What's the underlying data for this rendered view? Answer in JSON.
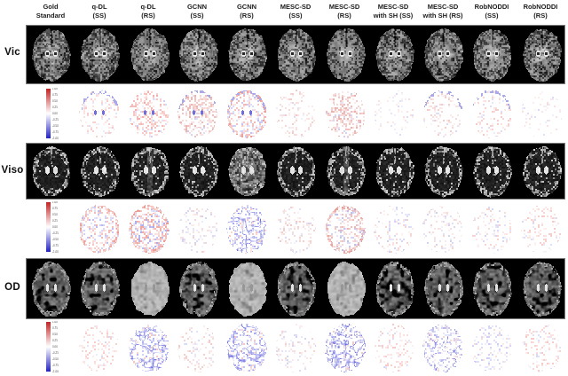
{
  "figure": {
    "background": "#ffffff",
    "strip_background": "#000000"
  },
  "columns": [
    {
      "id": "gold-standard",
      "line1": "Gold",
      "line2": "Standard"
    },
    {
      "id": "qdl-ss",
      "line1": "q-DL",
      "line2": "(SS)"
    },
    {
      "id": "qdl-rs",
      "line1": "q-DL",
      "line2": "(RS)"
    },
    {
      "id": "gcnn-ss",
      "line1": "GCNN",
      "line2": "(SS)"
    },
    {
      "id": "gcnn-rs",
      "line1": "GCNN",
      "line2": "(RS)"
    },
    {
      "id": "mescsd-ss",
      "line1": "MESC-SD",
      "line2": "(SS)"
    },
    {
      "id": "mescsd-rs",
      "line1": "MESC-SD",
      "line2": "(RS)"
    },
    {
      "id": "mescsd-sh-ss",
      "line1": "MESC-SD",
      "line2": "with SH (SS)"
    },
    {
      "id": "mescsd-sh-rs",
      "line1": "MESC-SD",
      "line2": "with SH (RS)"
    },
    {
      "id": "robnoddi-ss",
      "line1": "RobNODDI",
      "line2": "(SS)"
    },
    {
      "id": "robnoddi-rs",
      "line1": "RobNODDI",
      "line2": "(RS)"
    }
  ],
  "rows": [
    {
      "label": "Vic",
      "brains": [
        "vic",
        "vic",
        "vic-smooth",
        "vic",
        "vic",
        "vic",
        "vic-smooth",
        "vic",
        "vic",
        "vic",
        "vic"
      ],
      "diffs": [
        {
          "method": "q-DL (SS)",
          "style": "red-faint",
          "vent": true,
          "rim": true
        },
        {
          "method": "q-DL (RS)",
          "style": "red-mod",
          "vent": true,
          "rim": false
        },
        {
          "method": "GCNN (SS)",
          "style": "red-mod",
          "vent": true,
          "rim": true
        },
        {
          "method": "GCNN (RS)",
          "style": "mixed-mod",
          "vent": true,
          "rim": true
        },
        {
          "method": "MESC-SD (SS)",
          "style": "red-faint",
          "vent": false,
          "rim": false
        },
        {
          "method": "MESC-SD (RS)",
          "style": "red-mod",
          "vent": false,
          "rim": false
        },
        {
          "method": "MESC-SD with SH (SS)",
          "style": "faint",
          "vent": false,
          "rim": false
        },
        {
          "method": "MESC-SD with SH (RS)",
          "style": "red-faint",
          "vent": false,
          "rim": true
        },
        {
          "method": "RobNODDI (SS)",
          "style": "red-faint",
          "vent": false,
          "rim": true
        },
        {
          "method": "RobNODDI (RS)",
          "style": "faint",
          "vent": false,
          "rim": false
        }
      ]
    },
    {
      "label": "Viso",
      "brains": [
        "viso",
        "viso",
        "viso-mid",
        "viso",
        "viso-bright",
        "viso",
        "viso-mid",
        "viso",
        "viso",
        "viso",
        "viso"
      ],
      "diffs": [
        {
          "method": "q-DL (SS)",
          "style": "mixed-mod",
          "vent": false,
          "rim": false
        },
        {
          "method": "q-DL (RS)",
          "style": "mixed-strong",
          "vent": false,
          "rim": false
        },
        {
          "method": "GCNN (SS)",
          "style": "mixed-faint",
          "vent": false,
          "rim": false
        },
        {
          "method": "GCNN (RS)",
          "style": "blue-web",
          "vent": false,
          "rim": false
        },
        {
          "method": "MESC-SD (SS)",
          "style": "red-faint",
          "vent": false,
          "rim": false
        },
        {
          "method": "MESC-SD (RS)",
          "style": "mixed-mod",
          "vent": false,
          "rim": false
        },
        {
          "method": "MESC-SD with SH (SS)",
          "style": "mixed-faint",
          "vent": false,
          "rim": false
        },
        {
          "method": "MESC-SD with SH (RS)",
          "style": "mixed-faint",
          "vent": false,
          "rim": false
        },
        {
          "method": "RobNODDI (SS)",
          "style": "mixed-faint",
          "vent": false,
          "rim": false
        },
        {
          "method": "RobNODDI (RS)",
          "style": "red-faint",
          "vent": false,
          "rim": false
        }
      ]
    },
    {
      "label": "OD",
      "brains": [
        "od",
        "od",
        "od-light",
        "od",
        "od-light",
        "od",
        "od-light",
        "od",
        "od",
        "od",
        "od"
      ],
      "diffs": [
        {
          "method": "q-DL (SS)",
          "style": "red-faint",
          "vent": false,
          "rim": false
        },
        {
          "method": "q-DL (RS)",
          "style": "blue-web",
          "vent": false,
          "rim": false
        },
        {
          "method": "GCNN (SS)",
          "style": "red-faint",
          "vent": false,
          "rim": false
        },
        {
          "method": "GCNN (RS)",
          "style": "blue-web",
          "vent": false,
          "rim": false
        },
        {
          "method": "MESC-SD (SS)",
          "style": "mixed-faint",
          "vent": false,
          "rim": false
        },
        {
          "method": "MESC-SD (RS)",
          "style": "blue-web",
          "vent": false,
          "rim": false
        },
        {
          "method": "MESC-SD with SH (SS)",
          "style": "red-faint",
          "vent": false,
          "rim": false
        },
        {
          "method": "MESC-SD with SH (RS)",
          "style": "blue-mod",
          "vent": false,
          "rim": false
        },
        {
          "method": "RobNODDI (SS)",
          "style": "blue-faint",
          "vent": false,
          "rim": false
        },
        {
          "method": "RobNODDI (RS)",
          "style": "red-faint",
          "vent": false,
          "rim": false
        }
      ]
    }
  ],
  "colorbar": {
    "ticks": [
      "1.00",
      "0.75",
      "0.50",
      "0.25",
      "0.00",
      "-0.25",
      "-0.50",
      "-0.75",
      "-1.00"
    ],
    "top_color": "#c42222",
    "mid_color": "#ffffff",
    "bottom_color": "#2222c4"
  }
}
